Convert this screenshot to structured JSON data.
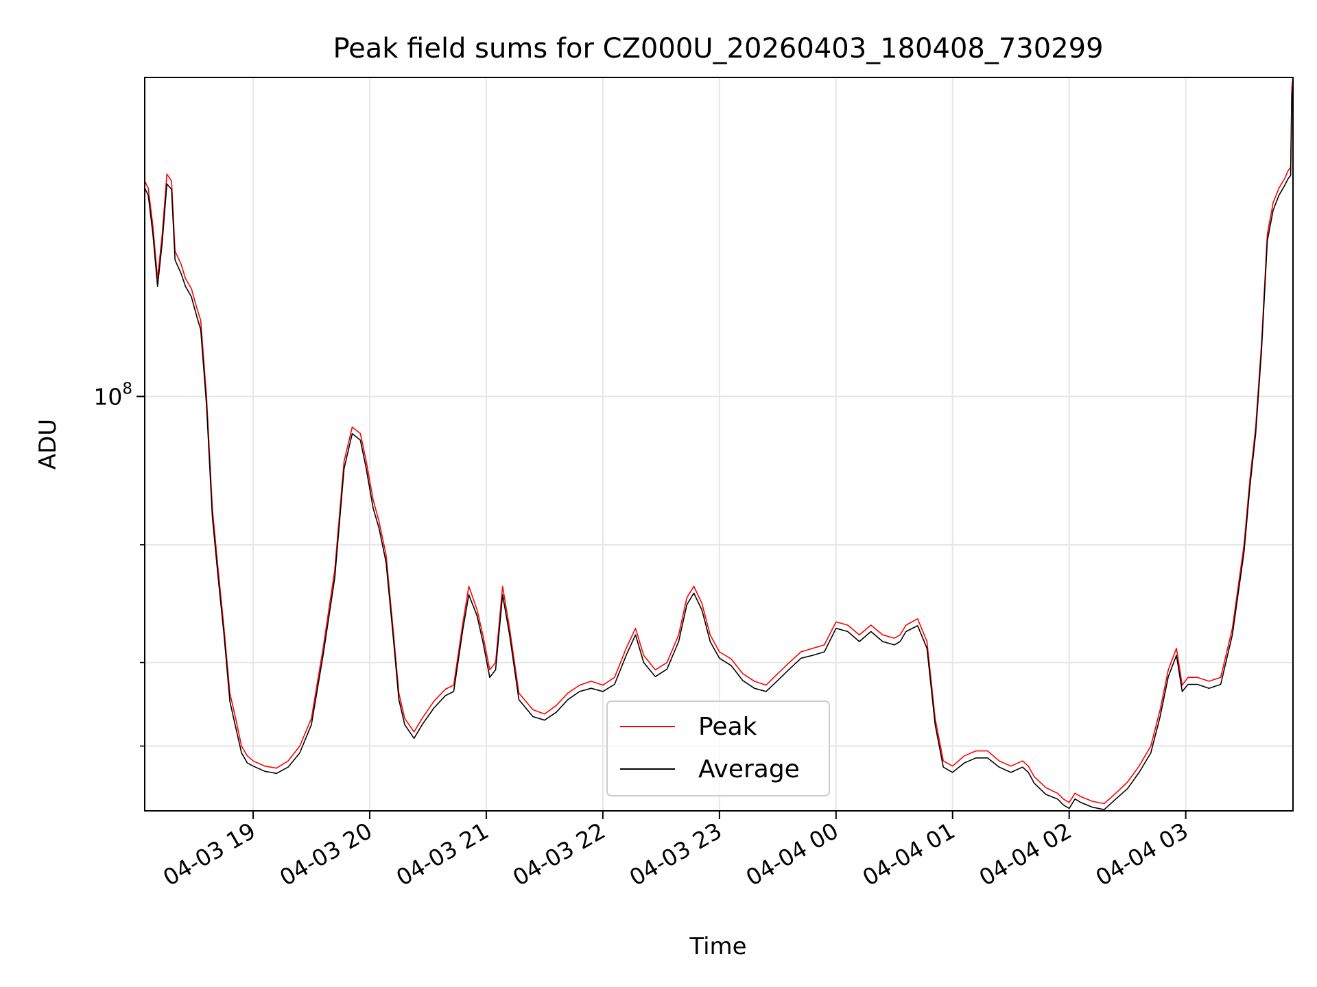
{
  "chart_data": {
    "type": "line",
    "title": "Peak field sums for CZ000U_20260403_180408_730299",
    "xlabel": "Time",
    "ylabel": "ADU",
    "yscale": "log",
    "ylim": [
      24000000,
      300000000
    ],
    "y_major_tick": {
      "value": 100000000,
      "label_base": "10",
      "label_exp": "8"
    },
    "y_minor_ticks": [
      30000000,
      40000000,
      60000000
    ],
    "xlim_hours": [
      18.07,
      27.92
    ],
    "x_ticks": [
      {
        "hour": 19,
        "label": "04-03 19"
      },
      {
        "hour": 20,
        "label": "04-03 20"
      },
      {
        "hour": 21,
        "label": "04-03 21"
      },
      {
        "hour": 22,
        "label": "04-03 22"
      },
      {
        "hour": 23,
        "label": "04-03 23"
      },
      {
        "hour": 24,
        "label": "04-04 00"
      },
      {
        "hour": 25,
        "label": "04-04 01"
      },
      {
        "hour": 26,
        "label": "04-04 02"
      },
      {
        "hour": 27,
        "label": "04-04 03"
      }
    ],
    "grid": true,
    "legend_position": "lower-center",
    "series": [
      {
        "name": "Peak",
        "color": "#ff0000",
        "points": [
          [
            18.07,
            210000000
          ],
          [
            18.1,
            205000000
          ],
          [
            18.14,
            180000000
          ],
          [
            18.18,
            150000000
          ],
          [
            18.22,
            175000000
          ],
          [
            18.26,
            215000000
          ],
          [
            18.3,
            210000000
          ],
          [
            18.33,
            165000000
          ],
          [
            18.38,
            158000000
          ],
          [
            18.42,
            150000000
          ],
          [
            18.47,
            145000000
          ],
          [
            18.52,
            135000000
          ],
          [
            18.55,
            130000000
          ],
          [
            18.6,
            100000000
          ],
          [
            18.65,
            68000000
          ],
          [
            18.7,
            55000000
          ],
          [
            18.75,
            45000000
          ],
          [
            18.8,
            36000000
          ],
          [
            18.85,
            33000000
          ],
          [
            18.9,
            30000000
          ],
          [
            18.95,
            29000000
          ],
          [
            19.0,
            28500000
          ],
          [
            19.1,
            28000000
          ],
          [
            19.2,
            27800000
          ],
          [
            19.3,
            28500000
          ],
          [
            19.4,
            30000000
          ],
          [
            19.5,
            33000000
          ],
          [
            19.6,
            42000000
          ],
          [
            19.7,
            55000000
          ],
          [
            19.78,
            80000000
          ],
          [
            19.85,
            90000000
          ],
          [
            19.92,
            88000000
          ],
          [
            19.97,
            80000000
          ],
          [
            20.03,
            70000000
          ],
          [
            20.08,
            65000000
          ],
          [
            20.14,
            58000000
          ],
          [
            20.2,
            45000000
          ],
          [
            20.25,
            36000000
          ],
          [
            20.3,
            33000000
          ],
          [
            20.38,
            31500000
          ],
          [
            20.45,
            33000000
          ],
          [
            20.55,
            35000000
          ],
          [
            20.65,
            36500000
          ],
          [
            20.72,
            37000000
          ],
          [
            20.8,
            46000000
          ],
          [
            20.85,
            52000000
          ],
          [
            20.92,
            48000000
          ],
          [
            20.97,
            44000000
          ],
          [
            21.03,
            39000000
          ],
          [
            21.08,
            40000000
          ],
          [
            21.14,
            52000000
          ],
          [
            21.2,
            45000000
          ],
          [
            21.28,
            36000000
          ],
          [
            21.4,
            34000000
          ],
          [
            21.5,
            33500000
          ],
          [
            21.6,
            34500000
          ],
          [
            21.7,
            36000000
          ],
          [
            21.8,
            37000000
          ],
          [
            21.9,
            37500000
          ],
          [
            22.0,
            37000000
          ],
          [
            22.1,
            38000000
          ],
          [
            22.2,
            42000000
          ],
          [
            22.28,
            45000000
          ],
          [
            22.35,
            41000000
          ],
          [
            22.45,
            39000000
          ],
          [
            22.55,
            40000000
          ],
          [
            22.65,
            44000000
          ],
          [
            22.72,
            50000000
          ],
          [
            22.78,
            52000000
          ],
          [
            22.85,
            49000000
          ],
          [
            22.92,
            44000000
          ],
          [
            23.0,
            41500000
          ],
          [
            23.1,
            40500000
          ],
          [
            23.2,
            38500000
          ],
          [
            23.3,
            37500000
          ],
          [
            23.4,
            37000000
          ],
          [
            23.5,
            38500000
          ],
          [
            23.6,
            40000000
          ],
          [
            23.7,
            41500000
          ],
          [
            23.8,
            42000000
          ],
          [
            23.9,
            42500000
          ],
          [
            24.0,
            46000000
          ],
          [
            24.1,
            45500000
          ],
          [
            24.2,
            44000000
          ],
          [
            24.3,
            45500000
          ],
          [
            24.4,
            44000000
          ],
          [
            24.5,
            43500000
          ],
          [
            24.55,
            44000000
          ],
          [
            24.6,
            45500000
          ],
          [
            24.7,
            46500000
          ],
          [
            24.78,
            43000000
          ],
          [
            24.85,
            33000000
          ],
          [
            24.92,
            28500000
          ],
          [
            25.0,
            28000000
          ],
          [
            25.1,
            29000000
          ],
          [
            25.2,
            29500000
          ],
          [
            25.3,
            29500000
          ],
          [
            25.4,
            28500000
          ],
          [
            25.5,
            28000000
          ],
          [
            25.6,
            28500000
          ],
          [
            25.65,
            28000000
          ],
          [
            25.7,
            27000000
          ],
          [
            25.8,
            26000000
          ],
          [
            25.9,
            25500000
          ],
          [
            25.95,
            25000000
          ],
          [
            26.0,
            24700000
          ],
          [
            26.05,
            25500000
          ],
          [
            26.1,
            25200000
          ],
          [
            26.2,
            24800000
          ],
          [
            26.3,
            24600000
          ],
          [
            26.4,
            25500000
          ],
          [
            26.5,
            26500000
          ],
          [
            26.6,
            28000000
          ],
          [
            26.7,
            30000000
          ],
          [
            26.78,
            34000000
          ],
          [
            26.85,
            39000000
          ],
          [
            26.92,
            42000000
          ],
          [
            26.97,
            37000000
          ],
          [
            27.02,
            38000000
          ],
          [
            27.1,
            38000000
          ],
          [
            27.2,
            37500000
          ],
          [
            27.3,
            38000000
          ],
          [
            27.4,
            45000000
          ],
          [
            27.5,
            60000000
          ],
          [
            27.55,
            75000000
          ],
          [
            27.6,
            90000000
          ],
          [
            27.65,
            120000000
          ],
          [
            27.7,
            175000000
          ],
          [
            27.75,
            195000000
          ],
          [
            27.8,
            205000000
          ],
          [
            27.85,
            212000000
          ],
          [
            27.88,
            218000000
          ],
          [
            27.9,
            220000000
          ],
          [
            27.91,
            290000000
          ],
          [
            27.92,
            300000000
          ]
        ]
      },
      {
        "name": "Average",
        "color": "#000000",
        "points": [
          [
            18.07,
            205000000
          ],
          [
            18.1,
            200000000
          ],
          [
            18.14,
            175000000
          ],
          [
            18.18,
            146000000
          ],
          [
            18.22,
            170000000
          ],
          [
            18.26,
            208000000
          ],
          [
            18.3,
            204000000
          ],
          [
            18.33,
            160000000
          ],
          [
            18.38,
            153000000
          ],
          [
            18.42,
            146000000
          ],
          [
            18.47,
            141000000
          ],
          [
            18.52,
            131000000
          ],
          [
            18.55,
            126000000
          ],
          [
            18.6,
            97000000
          ],
          [
            18.65,
            66000000
          ],
          [
            18.7,
            53500000
          ],
          [
            18.75,
            44000000
          ],
          [
            18.8,
            35000000
          ],
          [
            18.85,
            32000000
          ],
          [
            18.9,
            29300000
          ],
          [
            18.95,
            28300000
          ],
          [
            19.0,
            28000000
          ],
          [
            19.1,
            27500000
          ],
          [
            19.2,
            27300000
          ],
          [
            19.3,
            27900000
          ],
          [
            19.4,
            29300000
          ],
          [
            19.5,
            32300000
          ],
          [
            19.6,
            41000000
          ],
          [
            19.7,
            53500000
          ],
          [
            19.78,
            78000000
          ],
          [
            19.85,
            88000000
          ],
          [
            19.92,
            86000000
          ],
          [
            19.97,
            78000000
          ],
          [
            20.03,
            68000000
          ],
          [
            20.08,
            63500000
          ],
          [
            20.14,
            56500000
          ],
          [
            20.2,
            44000000
          ],
          [
            20.25,
            35200000
          ],
          [
            20.3,
            32300000
          ],
          [
            20.38,
            30800000
          ],
          [
            20.45,
            32300000
          ],
          [
            20.55,
            34200000
          ],
          [
            20.65,
            35700000
          ],
          [
            20.72,
            36200000
          ],
          [
            20.8,
            45000000
          ],
          [
            20.85,
            50500000
          ],
          [
            20.92,
            47000000
          ],
          [
            20.97,
            43000000
          ],
          [
            21.03,
            38000000
          ],
          [
            21.08,
            39000000
          ],
          [
            21.14,
            50500000
          ],
          [
            21.2,
            44000000
          ],
          [
            21.28,
            35200000
          ],
          [
            21.4,
            33200000
          ],
          [
            21.5,
            32800000
          ],
          [
            21.6,
            33700000
          ],
          [
            21.7,
            35200000
          ],
          [
            21.8,
            36200000
          ],
          [
            21.9,
            36600000
          ],
          [
            22.0,
            36200000
          ],
          [
            22.1,
            37100000
          ],
          [
            22.2,
            41000000
          ],
          [
            22.28,
            44000000
          ],
          [
            22.35,
            40000000
          ],
          [
            22.45,
            38100000
          ],
          [
            22.55,
            39100000
          ],
          [
            22.65,
            43000000
          ],
          [
            22.72,
            48800000
          ],
          [
            22.78,
            50800000
          ],
          [
            22.85,
            47900000
          ],
          [
            22.92,
            43000000
          ],
          [
            23.0,
            40600000
          ],
          [
            23.1,
            39600000
          ],
          [
            23.2,
            37600000
          ],
          [
            23.3,
            36600000
          ],
          [
            23.4,
            36200000
          ],
          [
            23.5,
            37600000
          ],
          [
            23.6,
            39100000
          ],
          [
            23.7,
            40600000
          ],
          [
            23.8,
            41000000
          ],
          [
            23.9,
            41500000
          ],
          [
            24.0,
            45000000
          ],
          [
            24.1,
            44500000
          ],
          [
            24.2,
            43000000
          ],
          [
            24.3,
            44500000
          ],
          [
            24.4,
            43000000
          ],
          [
            24.5,
            42500000
          ],
          [
            24.55,
            43000000
          ],
          [
            24.6,
            44500000
          ],
          [
            24.7,
            45400000
          ],
          [
            24.78,
            42000000
          ],
          [
            24.85,
            32300000
          ],
          [
            24.92,
            27900000
          ],
          [
            25.0,
            27400000
          ],
          [
            25.1,
            28300000
          ],
          [
            25.2,
            28800000
          ],
          [
            25.3,
            28800000
          ],
          [
            25.4,
            27900000
          ],
          [
            25.5,
            27400000
          ],
          [
            25.6,
            27900000
          ],
          [
            25.65,
            27400000
          ],
          [
            25.7,
            26400000
          ],
          [
            25.8,
            25400000
          ],
          [
            25.9,
            25000000
          ],
          [
            25.95,
            24500000
          ],
          [
            26.0,
            24200000
          ],
          [
            26.05,
            25000000
          ],
          [
            26.1,
            24700000
          ],
          [
            26.2,
            24300000
          ],
          [
            26.3,
            24100000
          ],
          [
            26.4,
            25000000
          ],
          [
            26.5,
            25900000
          ],
          [
            26.6,
            27400000
          ],
          [
            26.7,
            29300000
          ],
          [
            26.78,
            33200000
          ],
          [
            26.85,
            38100000
          ],
          [
            26.92,
            41000000
          ],
          [
            26.97,
            36200000
          ],
          [
            27.02,
            37100000
          ],
          [
            27.1,
            37100000
          ],
          [
            27.2,
            36600000
          ],
          [
            27.3,
            37100000
          ],
          [
            27.4,
            44000000
          ],
          [
            27.5,
            58500000
          ],
          [
            27.55,
            73200000
          ],
          [
            27.6,
            88000000
          ],
          [
            27.65,
            117000000
          ],
          [
            27.7,
            171000000
          ],
          [
            27.75,
            190000000
          ],
          [
            27.8,
            200000000
          ],
          [
            27.85,
            207000000
          ],
          [
            27.88,
            212000000
          ],
          [
            27.9,
            214000000
          ],
          [
            27.91,
            283000000
          ],
          [
            27.92,
            290000000
          ]
        ]
      }
    ]
  }
}
